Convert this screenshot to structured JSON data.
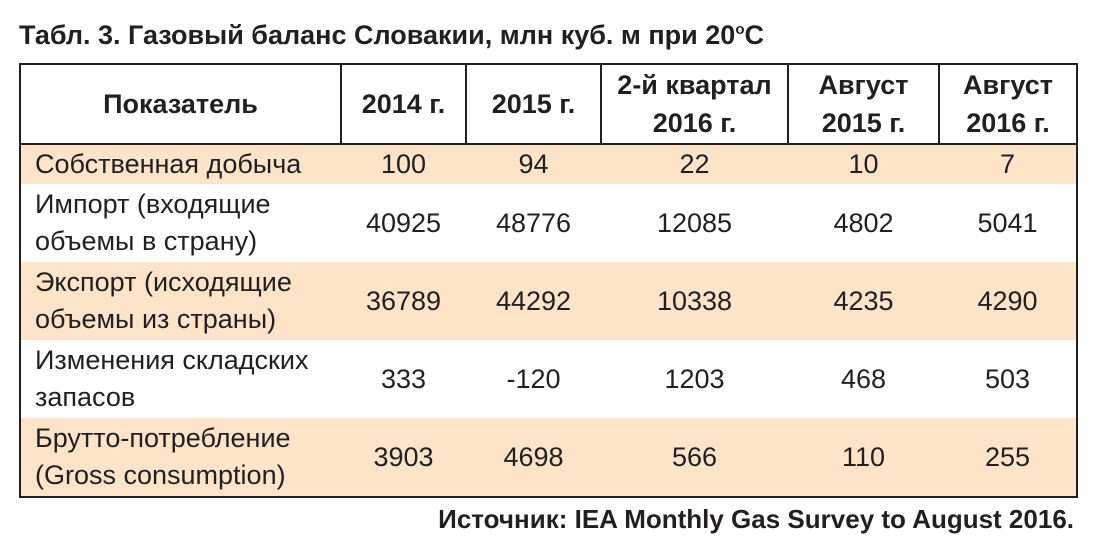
{
  "title": "Табл. 3. Газовый баланс Словакии, млн куб. м при 20",
  "title_degree": "о",
  "title_unit": "С",
  "table": {
    "headers": [
      "Показатель",
      "2014 г.",
      "2015 г.",
      "2-й квартал 2016 г.",
      "Август 2015 г.",
      "Август 2016 г."
    ],
    "rows": [
      {
        "label": "Собственная добыча",
        "values": [
          "100",
          "94",
          "22",
          "10",
          "7"
        ],
        "shaded": true
      },
      {
        "label": "Импорт (входящие объемы в страну)",
        "values": [
          "40925",
          "48776",
          "12085",
          "4802",
          "5041"
        ],
        "shaded": false
      },
      {
        "label": "Экспорт (исходящие объемы из страны)",
        "values": [
          "36789",
          "44292",
          "10338",
          "4235",
          "4290"
        ],
        "shaded": true
      },
      {
        "label": "Изменения складских запасов",
        "values": [
          "333",
          "-120",
          "1203",
          "468",
          "503"
        ],
        "shaded": false
      },
      {
        "label": "Брутто-потребление (Gross consumption)",
        "values": [
          "3903",
          "4698",
          "566",
          "110",
          "255"
        ],
        "shaded": true
      }
    ]
  },
  "source": "Источник: IEA Monthly Gas Survey to August 2016.",
  "colors": {
    "shade": "#fde4c9",
    "border": "#231f20"
  }
}
